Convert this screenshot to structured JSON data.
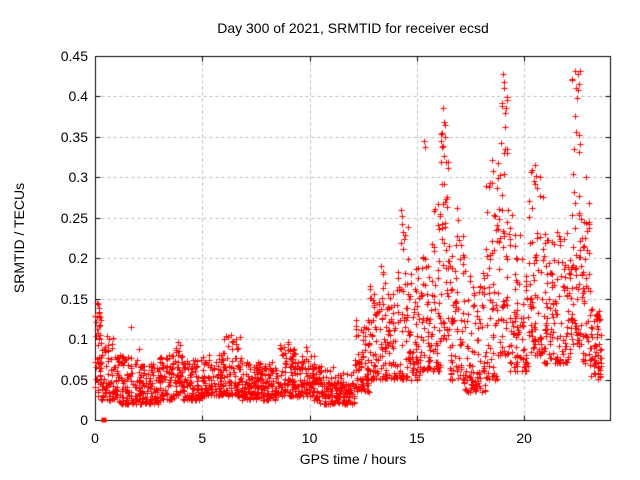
{
  "chart_data": {
    "type": "scatter",
    "title": "Day 300 of 2021, SRMTID for receiver ecsd",
    "xlabel": "GPS time / hours",
    "ylabel": "SRMTID / TECUs",
    "xlim": [
      0,
      24
    ],
    "ylim": [
      0,
      0.45
    ],
    "xticks": {
      "values": [
        0,
        5,
        10,
        15,
        20
      ],
      "labels": [
        "0",
        "5",
        "10",
        "15",
        "20"
      ]
    },
    "yticks": {
      "values": [
        0,
        0.05,
        0.1,
        0.15,
        0.2,
        0.25,
        0.3,
        0.35,
        0.4,
        0.45
      ],
      "labels": [
        "0",
        "0.05",
        "0.1",
        "0.15",
        "0.2",
        "0.25",
        "0.3",
        "0.35",
        "0.4",
        "0.45"
      ]
    },
    "grid": {
      "show": true,
      "color": "#b9b9b9",
      "dash": [
        3,
        3
      ]
    },
    "legend": null,
    "colors": {
      "background": "#ffffff",
      "axis": "#000000",
      "text": "#000000",
      "marker": "#ff0000"
    },
    "marker": {
      "symbol": "plus",
      "color": "#ff0000",
      "size": 7
    },
    "series": [
      {
        "name": "SRMTID",
        "seed": 20211300,
        "n_points_total_approx": 2400,
        "envelope_bins": [
          [
            0.0,
            0.3,
            45,
            0.03,
            0.148,
            1.2
          ],
          [
            0.3,
            1.0,
            75,
            0.025,
            0.105,
            1.6
          ],
          [
            1.0,
            2.0,
            100,
            0.02,
            0.085,
            1.6
          ],
          [
            2.0,
            3.0,
            100,
            0.02,
            0.07,
            1.5
          ],
          [
            3.0,
            3.7,
            70,
            0.025,
            0.08,
            1.5
          ],
          [
            3.7,
            4.1,
            42,
            0.03,
            0.095,
            1.5
          ],
          [
            4.1,
            5.0,
            90,
            0.025,
            0.075,
            1.5
          ],
          [
            5.0,
            6.0,
            100,
            0.03,
            0.085,
            1.5
          ],
          [
            6.0,
            6.8,
            80,
            0.03,
            0.105,
            1.5
          ],
          [
            6.8,
            8.5,
            170,
            0.025,
            0.072,
            1.5
          ],
          [
            8.5,
            9.4,
            90,
            0.03,
            0.095,
            1.5
          ],
          [
            9.4,
            10.2,
            80,
            0.028,
            0.08,
            1.5
          ],
          [
            10.2,
            11.2,
            95,
            0.02,
            0.068,
            1.5
          ],
          [
            11.2,
            12.1,
            90,
            0.02,
            0.06,
            1.5
          ],
          [
            12.1,
            12.8,
            80,
            0.035,
            0.125,
            1.4
          ],
          [
            12.8,
            13.4,
            60,
            0.05,
            0.17,
            1.6
          ],
          [
            13.4,
            14.0,
            62,
            0.05,
            0.19,
            1.7
          ],
          [
            14.0,
            14.6,
            60,
            0.05,
            0.245,
            1.8
          ],
          [
            14.6,
            15.2,
            58,
            0.05,
            0.19,
            1.7
          ],
          [
            15.2,
            15.6,
            40,
            0.06,
            0.225,
            1.7
          ],
          [
            15.6,
            16.1,
            50,
            0.06,
            0.275,
            1.8
          ],
          [
            16.1,
            16.5,
            48,
            0.1,
            0.375,
            1.3
          ],
          [
            16.5,
            17.2,
            70,
            0.05,
            0.235,
            1.8
          ],
          [
            17.2,
            18.2,
            95,
            0.035,
            0.185,
            1.8
          ],
          [
            18.2,
            18.75,
            55,
            0.05,
            0.3,
            1.9
          ],
          [
            18.75,
            19.3,
            58,
            0.08,
            0.42,
            1.9
          ],
          [
            19.3,
            20.2,
            88,
            0.06,
            0.255,
            1.9
          ],
          [
            20.2,
            20.9,
            70,
            0.08,
            0.315,
            1.8
          ],
          [
            20.9,
            22.2,
            130,
            0.07,
            0.245,
            1.8
          ],
          [
            22.2,
            22.65,
            55,
            0.09,
            0.435,
            1.5
          ],
          [
            22.65,
            23.05,
            45,
            0.07,
            0.28,
            1.8
          ],
          [
            23.05,
            23.6,
            60,
            0.05,
            0.14,
            1.2
          ]
        ],
        "outlier_points": [
          [
            1.7,
            0.115
          ],
          [
            2.05,
            0.088
          ],
          [
            3.85,
            0.096
          ],
          [
            6.35,
            0.105
          ],
          [
            6.45,
            0.098
          ],
          [
            9.0,
            0.096
          ],
          [
            9.85,
            0.09
          ],
          [
            9.9,
            0.085
          ],
          [
            13.35,
            0.19
          ],
          [
            13.4,
            0.183
          ],
          [
            14.25,
            0.26
          ],
          [
            14.3,
            0.252
          ],
          [
            15.32,
            0.345
          ],
          [
            15.38,
            0.337
          ],
          [
            16.22,
            0.386
          ],
          [
            16.27,
            0.368
          ],
          [
            16.32,
            0.35
          ],
          [
            16.18,
            0.338
          ],
          [
            16.85,
            0.262
          ],
          [
            16.9,
            0.247
          ],
          [
            18.5,
            0.322
          ],
          [
            18.56,
            0.308
          ],
          [
            18.62,
            0.252
          ],
          [
            19.02,
            0.428
          ],
          [
            19.08,
            0.41
          ],
          [
            18.98,
            0.392
          ],
          [
            19.15,
            0.386
          ],
          [
            19.1,
            0.362
          ],
          [
            19.2,
            0.335
          ],
          [
            19.05,
            0.33
          ],
          [
            20.5,
            0.315
          ],
          [
            20.55,
            0.302
          ],
          [
            20.45,
            0.295
          ],
          [
            22.35,
            0.432
          ],
          [
            22.5,
            0.428
          ],
          [
            22.4,
            0.41
          ],
          [
            22.45,
            0.398
          ],
          [
            22.38,
            0.376
          ],
          [
            22.55,
            0.352
          ],
          [
            22.3,
            0.335
          ],
          [
            22.9,
            0.3
          ],
          [
            23.0,
            0.268
          ]
        ]
      }
    ],
    "special_points": [
      {
        "x": 0.37,
        "y": 0.0,
        "marker": "filled-square",
        "size": 5,
        "color": "#ff0000"
      }
    ]
  }
}
